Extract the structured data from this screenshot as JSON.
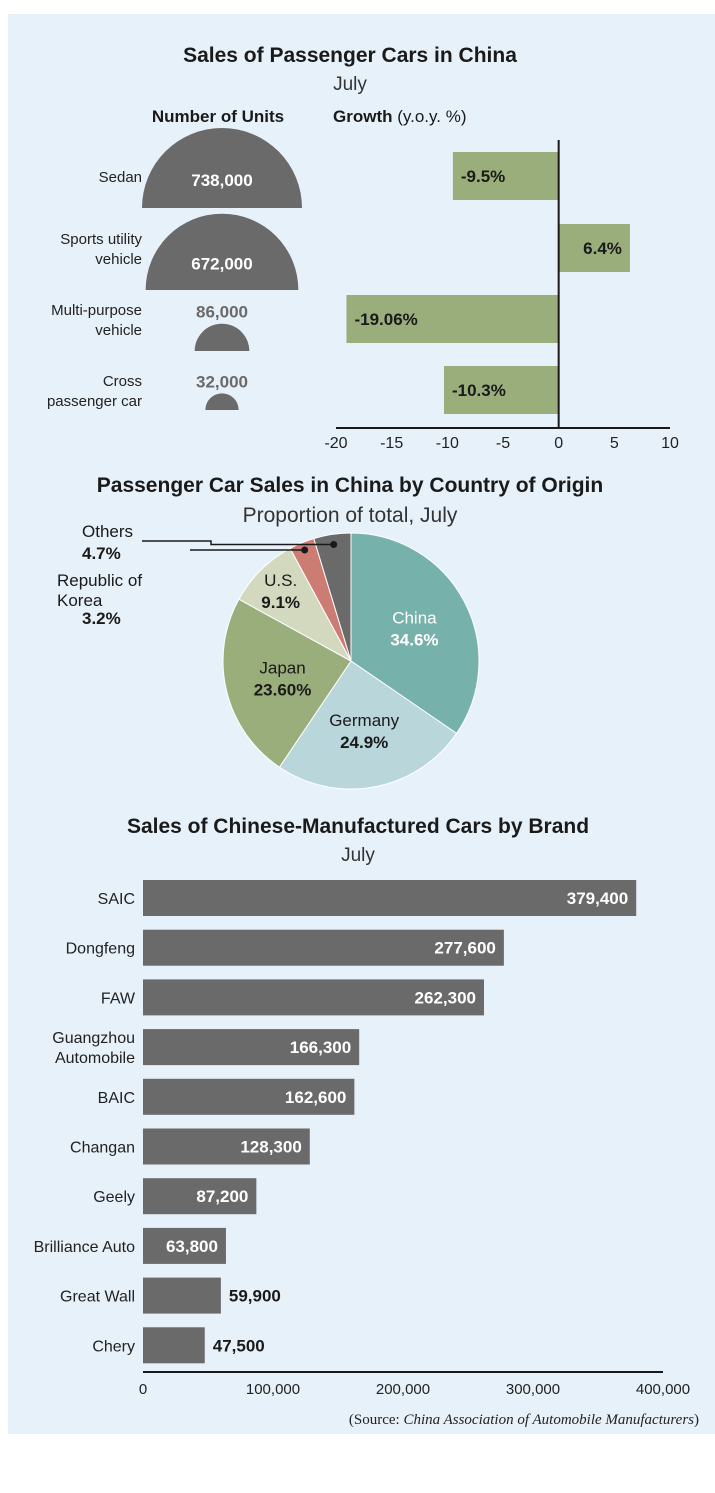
{
  "colors": {
    "panel_bg": "#e7f1f9",
    "dark_gray": "#6a6a6a",
    "bar_green": "#9aae7c",
    "china": "#77b1ab",
    "germany": "#b9d6db",
    "japan": "#9aae7c",
    "us": "#d2d9bf",
    "korea": "#cd7c73",
    "others": "#6a6a6a"
  },
  "source": {
    "prefix": "(Source: ",
    "name": "China Association of Automobile Manufacturers",
    "suffix": ")"
  },
  "chart_data": [
    {
      "type": "bar",
      "title": "Sales of Passenger Cars in China",
      "subtitle": "July",
      "units_header": "Number of Units",
      "growth_header_bold": "Growth",
      "growth_header_rest": " (y.o.y. %)",
      "categories": [
        [
          "Sedan"
        ],
        [
          "Sports utility",
          "vehicle"
        ],
        [
          "Multi-purpose",
          "vehicle"
        ],
        [
          "Cross",
          "passenger car"
        ]
      ],
      "units": [
        738000,
        672000,
        86000,
        32000
      ],
      "units_labels": [
        "738,000",
        "672,000",
        "86,000",
        "32,000"
      ],
      "growth": [
        -9.5,
        6.4,
        -19.06,
        -10.3
      ],
      "growth_labels": [
        "-9.5%",
        "6.4%",
        "-19.06%",
        "-10.3%"
      ],
      "xlim": [
        -20,
        10
      ],
      "xticks": [
        "-20",
        "-15",
        "-10",
        "-5",
        "0",
        "5",
        "10"
      ]
    },
    {
      "type": "pie",
      "title": "Passenger Car Sales in China by Country of Origin",
      "subtitle": "Proportion of total, July",
      "slices": [
        {
          "name": "China",
          "value": 34.6,
          "label": "34.6%"
        },
        {
          "name": "Germany",
          "value": 24.9,
          "label": "24.9%"
        },
        {
          "name": "Japan",
          "value": 23.6,
          "label": "23.60%"
        },
        {
          "name": "U.S.",
          "value": 9.1,
          "label": "9.1%"
        },
        {
          "name": "Republic of Korea",
          "name_lines": [
            "Republic of",
            "Korea"
          ],
          "value": 3.2,
          "label": "3.2%"
        },
        {
          "name": "Others",
          "value": 4.7,
          "label": "4.7%"
        }
      ]
    },
    {
      "type": "bar",
      "orientation": "horizontal",
      "title": "Sales of Chinese-Manufactured Cars by Brand",
      "subtitle": "July",
      "categories": [
        [
          "SAIC"
        ],
        [
          "Dongfeng"
        ],
        [
          "FAW"
        ],
        [
          "Guangzhou",
          "Automobile"
        ],
        [
          "BAIC"
        ],
        [
          "Changan"
        ],
        [
          "Geely"
        ],
        [
          "Brilliance Auto"
        ],
        [
          "Great Wall"
        ],
        [
          "Chery"
        ]
      ],
      "values": [
        379400,
        277600,
        262300,
        166300,
        162600,
        128300,
        87200,
        63800,
        59900,
        47500
      ],
      "value_labels": [
        "379,400",
        "277,600",
        "262,300",
        "166,300",
        "162,600",
        "128,300",
        "87,200",
        "63,800",
        "59,900",
        "47,500"
      ],
      "xlim": [
        0,
        400000
      ],
      "xticks": [
        "0",
        "100,000",
        "200,000",
        "300,000",
        "400,000"
      ]
    }
  ]
}
